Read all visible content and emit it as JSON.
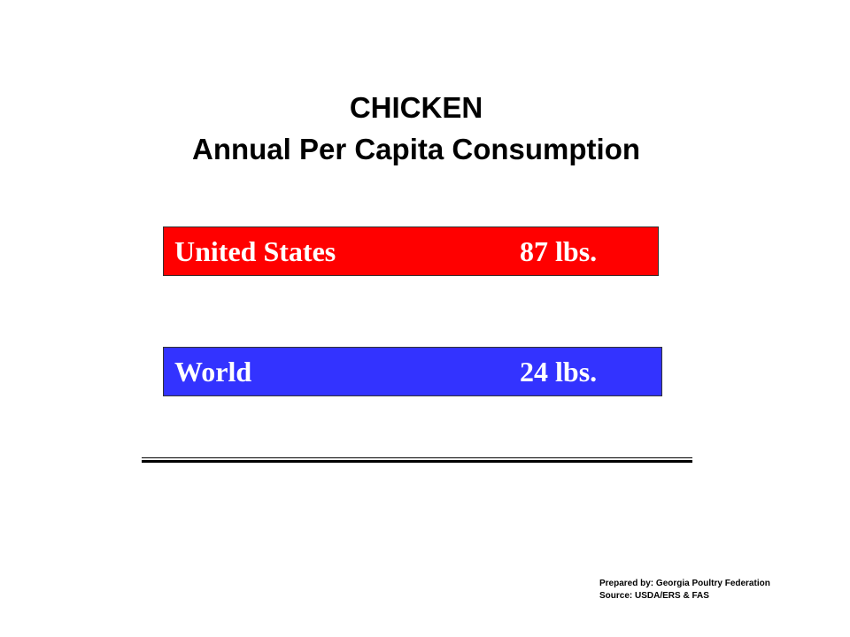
{
  "title": {
    "line1": "CHICKEN",
    "line2": "Annual Per Capita Consumption"
  },
  "rows": [
    {
      "label": "United States",
      "value": "87 lbs."
    },
    {
      "label": "World",
      "value": "24 lbs."
    }
  ],
  "footer": {
    "prepared": "Prepared by: Georgia Poultry Federation",
    "source": "Source: USDA/ERS & FAS"
  }
}
